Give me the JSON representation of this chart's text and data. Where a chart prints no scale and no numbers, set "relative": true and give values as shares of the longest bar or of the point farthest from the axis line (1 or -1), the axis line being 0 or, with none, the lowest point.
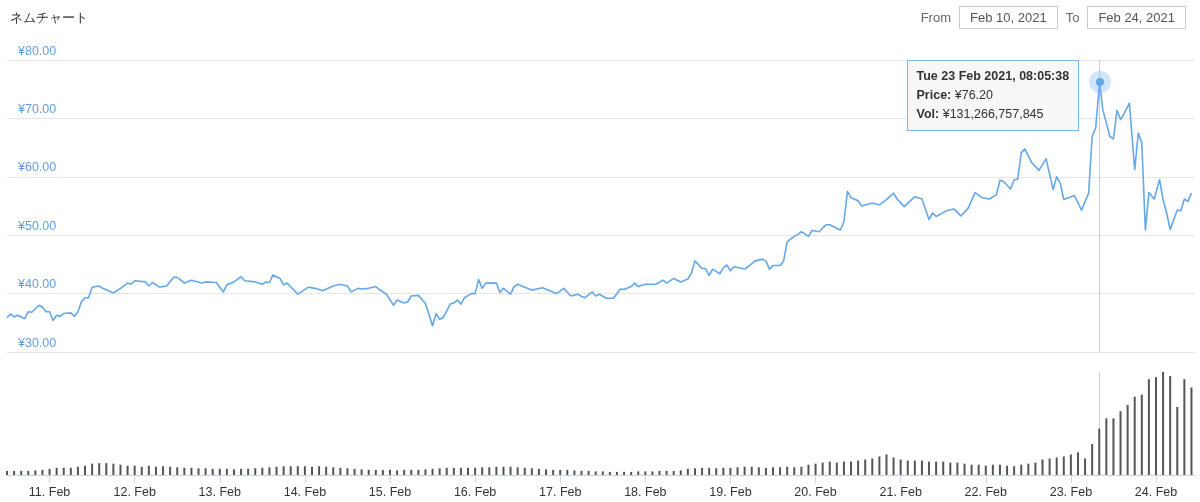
{
  "chart_data": [
    {
      "type": "line",
      "title": "ネムチャート",
      "annotations": [
        "From",
        "Feb 10, 2021",
        "To",
        "Feb 24, 2021",
        {
          "text": "Tue 23 Feb 2021, 08:05:38",
          "x": "2021-02-23T08:05",
          "y": 76.2
        },
        "Price: ¥76.20",
        "Vol: ¥131,266,757,845"
      ],
      "xlim": [
        "2021-02-10T12:00",
        "2021-02-24T11:00"
      ],
      "ylim": [
        30,
        80
      ],
      "yticks": [
        {
          "value": 30,
          "label": "¥30.00"
        },
        {
          "value": 40,
          "label": "¥40.00"
        },
        {
          "value": 50,
          "label": "¥50.00"
        },
        {
          "value": 60,
          "label": "¥60.00"
        },
        {
          "value": 70,
          "label": "¥70.00"
        },
        {
          "value": 80,
          "label": "¥80.00"
        }
      ],
      "grid": "y",
      "tick_labels": "y",
      "ref_lines": [
        {
          "axis": "x",
          "value": "2021-02-23T08:05",
          "color": "#cccccc"
        }
      ],
      "series": [
        {
          "color": "#64a8ea",
          "x": [
            "2021-02-10T12:00",
            "2021-02-10T13:00",
            "2021-02-10T14:00",
            "2021-02-10T15:00",
            "2021-02-10T17:00",
            "2021-02-10T18:00",
            "2021-02-10T19:00",
            "2021-02-10T21:00",
            "2021-02-10T22:00",
            "2021-02-10T23:00",
            "2021-02-11T00:00",
            "2021-02-11T01:00",
            "2021-02-11T02:00",
            "2021-02-11T03:00",
            "2021-02-11T04:00",
            "2021-02-11T06:00",
            "2021-02-11T07:00",
            "2021-02-11T08:00",
            "2021-02-11T09:00",
            "2021-02-11T10:00",
            "2021-02-11T11:00",
            "2021-02-11T12:00",
            "2021-02-11T14:00",
            "2021-02-11T15:00",
            "2021-02-11T18:00",
            "2021-02-11T20:00",
            "2021-02-11T22:00",
            "2021-02-11T23:00",
            "2021-02-12T00:00",
            "2021-02-12T03:00",
            "2021-02-12T04:00",
            "2021-02-12T05:00",
            "2021-02-12T07:00",
            "2021-02-12T09:00",
            "2021-02-12T11:00",
            "2021-02-12T12:00",
            "2021-02-12T13:00",
            "2021-02-12T14:00",
            "2021-02-12T16:00",
            "2021-02-12T19:00",
            "2021-02-12T20:00",
            "2021-02-12T23:00",
            "2021-02-13T01:00",
            "2021-02-13T02:00",
            "2021-02-13T04:00",
            "2021-02-13T06:00",
            "2021-02-13T07:00",
            "2021-02-13T10:00",
            "2021-02-13T12:00",
            "2021-02-13T13:00",
            "2021-02-13T14:00",
            "2021-02-13T15:00",
            "2021-02-13T17:00",
            "2021-02-13T18:00",
            "2021-02-13T19:00",
            "2021-02-13T22:00",
            "2021-02-13T23:00",
            "2021-02-14T01:00",
            "2021-02-14T03:00",
            "2021-02-14T05:00",
            "2021-02-14T08:00",
            "2021-02-14T10:00",
            "2021-02-14T12:00",
            "2021-02-14T13:00",
            "2021-02-14T15:00",
            "2021-02-14T16:00",
            "2021-02-14T18:00",
            "2021-02-14T20:00",
            "2021-02-14T21:00",
            "2021-02-14T23:00",
            "2021-02-15T01:00",
            "2021-02-15T02:00",
            "2021-02-15T04:00",
            "2021-02-15T05:00",
            "2021-02-15T06:00",
            "2021-02-15T08:00",
            "2021-02-15T10:00",
            "2021-02-15T12:00",
            "2021-02-15T13:00",
            "2021-02-15T14:00",
            "2021-02-15T15:00",
            "2021-02-15T17:00",
            "2021-02-15T18:00",
            "2021-02-15T19:00",
            "2021-02-15T20:00",
            "2021-02-15T21:00",
            "2021-02-15T23:00",
            "2021-02-16T00:00",
            "2021-02-16T01:00",
            "2021-02-16T02:00",
            "2021-02-16T03:00",
            "2021-02-16T06:00",
            "2021-02-16T07:00",
            "2021-02-16T08:00",
            "2021-02-16T10:00",
            "2021-02-16T11:00",
            "2021-02-16T12:00",
            "2021-02-16T14:00",
            "2021-02-16T16:00",
            "2021-02-16T19:00",
            "2021-02-16T21:00",
            "2021-02-16T23:00",
            "2021-02-17T01:00",
            "2021-02-17T03:00",
            "2021-02-17T05:00",
            "2021-02-17T06:00",
            "2021-02-17T07:00",
            "2021-02-17T09:00",
            "2021-02-17T10:00",
            "2021-02-17T11:00",
            "2021-02-17T13:00",
            "2021-02-17T15:00",
            "2021-02-17T17:00",
            "2021-02-17T18:00",
            "2021-02-17T20:00",
            "2021-02-17T21:00",
            "2021-02-17T22:00",
            "2021-02-18T00:00",
            "2021-02-18T03:00",
            "2021-02-18T05:00",
            "2021-02-18T06:00",
            "2021-02-18T08:00",
            "2021-02-18T10:00",
            "2021-02-18T12:00",
            "2021-02-18T13:00",
            "2021-02-18T14:00",
            "2021-02-18T16:00",
            "2021-02-18T17:00",
            "2021-02-18T18:00",
            "2021-02-18T19:00",
            "2021-02-18T21:00",
            "2021-02-18T22:00",
            "2021-02-18T23:00",
            "2021-02-19T00:00",
            "2021-02-19T01:00",
            "2021-02-19T04:00",
            "2021-02-19T05:00",
            "2021-02-19T07:00",
            "2021-02-19T09:00",
            "2021-02-19T10:00",
            "2021-02-19T11:00",
            "2021-02-19T12:00",
            "2021-02-19T14:00",
            "2021-02-19T15:00",
            "2021-02-19T16:00",
            "2021-02-19T18:00",
            "2021-02-19T19:00",
            "2021-02-19T20:00",
            "2021-02-19T22:00",
            "2021-02-19T23:00",
            "2021-02-20T01:00",
            "2021-02-20T03:00",
            "2021-02-20T04:00",
            "2021-02-20T07:00",
            "2021-02-20T08:00",
            "2021-02-20T09:00",
            "2021-02-20T10:00",
            "2021-02-20T12:00",
            "2021-02-20T13:00",
            "2021-02-20T16:00",
            "2021-02-20T18:00",
            "2021-02-20T20:00",
            "2021-02-20T22:00",
            "2021-02-20T23:00",
            "2021-02-21T01:00",
            "2021-02-21T04:00",
            "2021-02-21T06:00",
            "2021-02-21T08:00",
            "2021-02-21T09:00",
            "2021-02-21T10:00",
            "2021-02-21T13:00",
            "2021-02-21T15:00",
            "2021-02-21T17:00",
            "2021-02-21T19:00",
            "2021-02-21T21:00",
            "2021-02-21T23:00",
            "2021-02-22T01:00",
            "2021-02-22T03:00",
            "2021-02-22T04:00",
            "2021-02-22T05:00",
            "2021-02-22T07:00",
            "2021-02-22T08:00",
            "2021-02-22T09:00",
            "2021-02-22T10:00",
            "2021-02-22T11:00",
            "2021-02-22T13:00",
            "2021-02-22T15:00",
            "2021-02-22T17:00",
            "2021-02-22T19:00",
            "2021-02-22T20:00",
            "2021-02-22T21:00",
            "2021-02-22T22:00",
            "2021-02-23T01:00",
            "2021-02-23T03:00",
            "2021-02-23T05:00",
            "2021-02-23T06:00",
            "2021-02-23T07:00",
            "2021-02-23T08:05",
            "2021-02-23T09:00",
            "2021-02-23T11:00",
            "2021-02-23T12:00",
            "2021-02-23T13:00",
            "2021-02-23T14:00",
            "2021-02-23T15:00",
            "2021-02-23T16:30",
            "2021-02-23T18:00",
            "2021-02-23T19:00",
            "2021-02-23T20:00",
            "2021-02-23T21:00",
            "2021-02-23T22:00",
            "2021-02-23T23:30",
            "2021-02-24T01:00",
            "2021-02-24T02:00",
            "2021-02-24T03:00",
            "2021-02-24T04:00",
            "2021-02-24T06:00",
            "2021-02-24T07:00",
            "2021-02-24T08:00",
            "2021-02-24T09:00",
            "2021-02-24T10:00"
          ],
          "values": [
            35.9,
            36.5,
            36.0,
            36.3,
            35.7,
            36.9,
            36.8,
            38.0,
            37.7,
            36.9,
            36.9,
            35.4,
            36.3,
            36.1,
            36.6,
            36.7,
            36.1,
            36.9,
            38.6,
            39.3,
            39.3,
            41.1,
            41.3,
            40.9,
            40.1,
            40.9,
            41.8,
            41.6,
            42.2,
            42.0,
            41.3,
            41.9,
            41.1,
            41.3,
            42.8,
            42.8,
            42.3,
            41.8,
            42.3,
            41.8,
            42.0,
            41.9,
            40.3,
            41.5,
            42.0,
            42.9,
            42.2,
            42.0,
            41.6,
            42.0,
            41.9,
            43.2,
            42.6,
            41.5,
            41.8,
            39.9,
            40.3,
            41.1,
            40.9,
            40.5,
            41.3,
            41.6,
            41.3,
            40.3,
            40.9,
            40.8,
            40.9,
            41.2,
            40.7,
            39.9,
            38.0,
            38.9,
            38.4,
            38.6,
            39.6,
            39.7,
            38.3,
            34.5,
            36.6,
            35.6,
            35.9,
            38.2,
            38.4,
            38.9,
            38.2,
            39.3,
            40.0,
            40.0,
            42.4,
            40.9,
            41.8,
            41.8,
            40.2,
            40.9,
            39.9,
            41.2,
            41.6,
            41.1,
            40.6,
            41.0,
            40.5,
            40.0,
            40.9,
            39.6,
            39.9,
            39.5,
            39.3,
            40.3,
            39.6,
            39.9,
            39.2,
            39.2,
            40.8,
            40.7,
            41.2,
            41.8,
            41.2,
            41.6,
            41.6,
            42.3,
            41.8,
            42.6,
            42.0,
            42.5,
            43.5,
            45.6,
            44.3,
            44.3,
            43.1,
            44.2,
            43.4,
            44.4,
            44.9,
            43.9,
            44.6,
            44.2,
            44.6,
            45.6,
            45.9,
            45.6,
            44.2,
            44.8,
            44.8,
            45.6,
            48.9,
            49.8,
            50.1,
            50.6,
            49.8,
            50.8,
            50.6,
            51.8,
            51.8,
            50.9,
            52.3,
            57.5,
            56.4,
            55.9,
            55.0,
            55.5,
            55.2,
            56.1,
            57.2,
            56.2,
            54.9,
            56.6,
            56.2,
            52.7,
            53.8,
            53.2,
            54.2,
            54.5,
            53.3,
            54.6,
            57.3,
            56.4,
            56.2,
            56.9,
            59.4,
            59.2,
            57.9,
            59.5,
            59.6,
            64.1,
            64.8,
            62.4,
            61.1,
            63.1,
            57.8,
            60.0,
            58.9,
            56.1,
            56.8,
            54.3,
            57.2,
            66.9,
            68.4,
            76.2,
            71.5,
            66.9,
            66.5,
            71.4,
            69.8,
            70.8,
            72.6,
            61.2,
            67.5,
            65.8,
            50.9,
            57.3,
            56.2,
            59.5,
            56.1,
            53.8,
            51.0,
            54.3,
            54.2,
            56.2,
            55.8,
            57.2
          ]
        }
      ]
    },
    {
      "type": "bar",
      "relative": true,
      "tick_labels": "x",
      "xlim": [
        "2021-02-10T12:00",
        "2021-02-24T11:00"
      ],
      "xticks": [
        {
          "value": "2021-02-11",
          "label": "11. Feb"
        },
        {
          "value": "2021-02-12",
          "label": "12. Feb"
        },
        {
          "value": "2021-02-13",
          "label": "13. Feb"
        },
        {
          "value": "2021-02-14",
          "label": "14. Feb"
        },
        {
          "value": "2021-02-15",
          "label": "15. Feb"
        },
        {
          "value": "2021-02-16",
          "label": "16. Feb"
        },
        {
          "value": "2021-02-17",
          "label": "17. Feb"
        },
        {
          "value": "2021-02-18",
          "label": "18. Feb"
        },
        {
          "value": "2021-02-19",
          "label": "19. Feb"
        },
        {
          "value": "2021-02-20",
          "label": "20. Feb"
        },
        {
          "value": "2021-02-21",
          "label": "21. Feb"
        },
        {
          "value": "2021-02-22",
          "label": "22. Feb"
        },
        {
          "value": "2021-02-23",
          "label": "23. Feb"
        },
        {
          "value": "2021-02-24",
          "label": "24. Feb"
        }
      ],
      "ref_lines": [
        {
          "axis": "x",
          "value": "2021-02-23T08:05",
          "color": "#cccccc"
        }
      ],
      "series": [
        {
          "color": "#555555",
          "x": [
            "2021-02-10T12:00",
            "2021-02-10T14:00",
            "2021-02-10T16:00",
            "2021-02-10T18:00",
            "2021-02-10T20:00",
            "2021-02-10T22:00",
            "2021-02-11T00:00",
            "2021-02-11T02:00",
            "2021-02-11T04:00",
            "2021-02-11T06:00",
            "2021-02-11T08:00",
            "2021-02-11T10:00",
            "2021-02-11T12:00",
            "2021-02-11T14:00",
            "2021-02-11T16:00",
            "2021-02-11T18:00",
            "2021-02-11T20:00",
            "2021-02-11T22:00",
            "2021-02-12T00:00",
            "2021-02-12T02:00",
            "2021-02-12T04:00",
            "2021-02-12T06:00",
            "2021-02-12T08:00",
            "2021-02-12T10:00",
            "2021-02-12T12:00",
            "2021-02-12T14:00",
            "2021-02-12T16:00",
            "2021-02-12T18:00",
            "2021-02-12T20:00",
            "2021-02-12T22:00",
            "2021-02-13T00:00",
            "2021-02-13T02:00",
            "2021-02-13T04:00",
            "2021-02-13T06:00",
            "2021-02-13T08:00",
            "2021-02-13T10:00",
            "2021-02-13T12:00",
            "2021-02-13T14:00",
            "2021-02-13T16:00",
            "2021-02-13T18:00",
            "2021-02-13T20:00",
            "2021-02-13T22:00",
            "2021-02-14T00:00",
            "2021-02-14T02:00",
            "2021-02-14T04:00",
            "2021-02-14T06:00",
            "2021-02-14T08:00",
            "2021-02-14T10:00",
            "2021-02-14T12:00",
            "2021-02-14T14:00",
            "2021-02-14T16:00",
            "2021-02-14T18:00",
            "2021-02-14T20:00",
            "2021-02-14T22:00",
            "2021-02-15T00:00",
            "2021-02-15T02:00",
            "2021-02-15T04:00",
            "2021-02-15T06:00",
            "2021-02-15T08:00",
            "2021-02-15T10:00",
            "2021-02-15T12:00",
            "2021-02-15T14:00",
            "2021-02-15T16:00",
            "2021-02-15T18:00",
            "2021-02-15T20:00",
            "2021-02-15T22:00",
            "2021-02-16T00:00",
            "2021-02-16T02:00",
            "2021-02-16T04:00",
            "2021-02-16T06:00",
            "2021-02-16T08:00",
            "2021-02-16T10:00",
            "2021-02-16T12:00",
            "2021-02-16T14:00",
            "2021-02-16T16:00",
            "2021-02-16T18:00",
            "2021-02-16T20:00",
            "2021-02-16T22:00",
            "2021-02-17T00:00",
            "2021-02-17T02:00",
            "2021-02-17T04:00",
            "2021-02-17T06:00",
            "2021-02-17T08:00",
            "2021-02-17T10:00",
            "2021-02-17T12:00",
            "2021-02-17T14:00",
            "2021-02-17T16:00",
            "2021-02-17T18:00",
            "2021-02-17T20:00",
            "2021-02-17T22:00",
            "2021-02-18T00:00",
            "2021-02-18T02:00",
            "2021-02-18T04:00",
            "2021-02-18T06:00",
            "2021-02-18T08:00",
            "2021-02-18T10:00",
            "2021-02-18T12:00",
            "2021-02-18T14:00",
            "2021-02-18T16:00",
            "2021-02-18T18:00",
            "2021-02-18T20:00",
            "2021-02-18T22:00",
            "2021-02-19T00:00",
            "2021-02-19T02:00",
            "2021-02-19T04:00",
            "2021-02-19T06:00",
            "2021-02-19T08:00",
            "2021-02-19T10:00",
            "2021-02-19T12:00",
            "2021-02-19T14:00",
            "2021-02-19T16:00",
            "2021-02-19T18:00",
            "2021-02-19T20:00",
            "2021-02-19T22:00",
            "2021-02-20T00:00",
            "2021-02-20T02:00",
            "2021-02-20T04:00",
            "2021-02-20T06:00",
            "2021-02-20T08:00",
            "2021-02-20T10:00",
            "2021-02-20T12:00",
            "2021-02-20T14:00",
            "2021-02-20T16:00",
            "2021-02-20T18:00",
            "2021-02-20T20:00",
            "2021-02-20T22:00",
            "2021-02-21T00:00",
            "2021-02-21T02:00",
            "2021-02-21T04:00",
            "2021-02-21T06:00",
            "2021-02-21T08:00",
            "2021-02-21T10:00",
            "2021-02-21T12:00",
            "2021-02-21T14:00",
            "2021-02-21T16:00",
            "2021-02-21T18:00",
            "2021-02-21T20:00",
            "2021-02-21T22:00",
            "2021-02-22T00:00",
            "2021-02-22T02:00",
            "2021-02-22T04:00",
            "2021-02-22T06:00",
            "2021-02-22T08:00",
            "2021-02-22T10:00",
            "2021-02-22T12:00",
            "2021-02-22T14:00",
            "2021-02-22T16:00",
            "2021-02-22T18:00",
            "2021-02-22T20:00",
            "2021-02-22T22:00",
            "2021-02-23T00:00",
            "2021-02-23T02:00",
            "2021-02-23T04:00",
            "2021-02-23T06:00",
            "2021-02-23T08:00",
            "2021-02-23T10:00",
            "2021-02-23T12:00",
            "2021-02-23T14:00",
            "2021-02-23T16:00",
            "2021-02-23T18:00",
            "2021-02-23T20:00",
            "2021-02-23T22:00",
            "2021-02-24T00:00",
            "2021-02-24T02:00",
            "2021-02-24T04:00",
            "2021-02-24T06:00",
            "2021-02-24T08:00",
            "2021-02-24T10:00"
          ],
          "values": [
            0.04,
            0.04,
            0.04,
            0.04,
            0.045,
            0.05,
            0.06,
            0.07,
            0.07,
            0.07,
            0.08,
            0.09,
            0.11,
            0.115,
            0.115,
            0.11,
            0.1,
            0.09,
            0.09,
            0.08,
            0.09,
            0.08,
            0.085,
            0.08,
            0.075,
            0.07,
            0.07,
            0.065,
            0.065,
            0.06,
            0.06,
            0.06,
            0.055,
            0.06,
            0.06,
            0.065,
            0.07,
            0.075,
            0.08,
            0.085,
            0.085,
            0.085,
            0.085,
            0.08,
            0.085,
            0.08,
            0.075,
            0.07,
            0.065,
            0.06,
            0.055,
            0.05,
            0.05,
            0.05,
            0.05,
            0.045,
            0.05,
            0.05,
            0.05,
            0.055,
            0.06,
            0.065,
            0.07,
            0.07,
            0.07,
            0.07,
            0.07,
            0.075,
            0.075,
            0.08,
            0.08,
            0.08,
            0.075,
            0.07,
            0.065,
            0.06,
            0.055,
            0.05,
            0.05,
            0.05,
            0.045,
            0.04,
            0.04,
            0.035,
            0.035,
            0.03,
            0.03,
            0.03,
            0.03,
            0.035,
            0.035,
            0.035,
            0.04,
            0.04,
            0.04,
            0.045,
            0.06,
            0.065,
            0.07,
            0.07,
            0.065,
            0.07,
            0.07,
            0.075,
            0.08,
            0.08,
            0.075,
            0.07,
            0.075,
            0.075,
            0.08,
            0.075,
            0.08,
            0.1,
            0.11,
            0.12,
            0.13,
            0.12,
            0.13,
            0.13,
            0.14,
            0.15,
            0.16,
            0.18,
            0.2,
            0.17,
            0.15,
            0.14,
            0.14,
            0.14,
            0.13,
            0.13,
            0.13,
            0.12,
            0.12,
            0.11,
            0.1,
            0.1,
            0.09,
            0.1,
            0.1,
            0.09,
            0.085,
            0.1,
            0.11,
            0.12,
            0.15,
            0.16,
            0.17,
            0.18,
            0.2,
            0.22,
            0.16,
            0.3,
            0.45,
            0.55,
            0.55,
            0.62,
            0.68,
            0.76,
            0.78,
            0.93,
            0.95,
            1,
            0.96,
            0.66,
            0.93,
            0.85
          ]
        }
      ]
    }
  ]
}
